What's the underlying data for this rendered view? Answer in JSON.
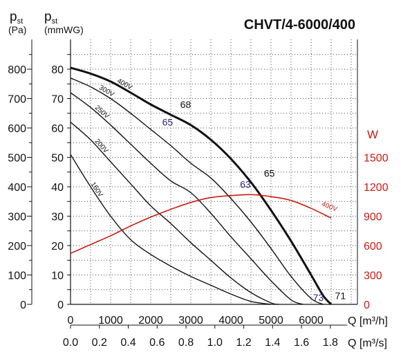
{
  "chart_data": {
    "type": "line",
    "title": "CHVT/4-6000/400",
    "left_axis_pa": {
      "label_main": "p",
      "label_sub": "st",
      "unit": "(Pa)",
      "ticks": [
        "0",
        "100",
        "200",
        "300",
        "400",
        "500",
        "600",
        "700",
        "800"
      ],
      "range": [
        0,
        900
      ]
    },
    "left_axis_mmwg": {
      "label_main": "p",
      "label_sub": "st",
      "unit": "(mmWG)",
      "ticks": [
        "0",
        "10",
        "20",
        "30",
        "40",
        "50",
        "60",
        "70",
        "80"
      ],
      "range": [
        0,
        90
      ]
    },
    "right_axis_w": {
      "label": "W",
      "ticks": [
        "0",
        "300",
        "600",
        "900",
        "1200",
        "1500"
      ],
      "range": [
        0,
        1500
      ],
      "color": "#cc1a10"
    },
    "x_axis_m3h": {
      "ticks": [
        "0",
        "1000",
        "2000",
        "3000",
        "4000",
        "5000",
        "6000"
      ],
      "unit_label": "Q [m³/h]",
      "range": [
        0,
        7000
      ]
    },
    "x_axis_m3s": {
      "ticks": [
        "0.0",
        "0.2",
        "0.4",
        "0.6",
        "0.8",
        "1.0",
        "1.2",
        "1.4",
        "1.6",
        "1.8"
      ],
      "unit_label": "Q [m³/s]"
    },
    "series": [
      {
        "name": "400V",
        "x": [
          0,
          500,
          1000,
          1500,
          2000,
          2500,
          3000,
          3500,
          4000,
          4500,
          5000,
          5500,
          6000,
          6300,
          6500
        ],
        "y": [
          80.5,
          78.5,
          75.8,
          72.0,
          68.0,
          64.5,
          61.0,
          56.0,
          49.5,
          41.5,
          32.0,
          21.5,
          10.0,
          3.0,
          0
        ]
      },
      {
        "name": "300V",
        "x": [
          0,
          500,
          1000,
          1500,
          2000,
          2500,
          3000,
          3500,
          4000,
          4500,
          5000,
          5500,
          6000,
          6300
        ],
        "y": [
          77.0,
          74.0,
          70.0,
          65.0,
          59.5,
          54.0,
          48.0,
          43.0,
          36.0,
          28.0,
          19.0,
          9.5,
          2.0,
          0
        ]
      },
      {
        "name": "250V",
        "x": [
          0,
          500,
          1000,
          1500,
          2000,
          2500,
          3000,
          3500,
          4000,
          4500,
          5000,
          5500,
          5800
        ],
        "y": [
          72.0,
          67.0,
          61.0,
          54.5,
          48.0,
          42.0,
          38.0,
          31.0,
          23.0,
          15.5,
          8.0,
          1.5,
          0
        ]
      },
      {
        "name": "200V",
        "x": [
          0,
          500,
          1000,
          1500,
          2000,
          2500,
          3000,
          3500,
          4000,
          4500,
          5000,
          5200
        ],
        "y": [
          62.0,
          56.0,
          48.5,
          41.0,
          33.5,
          27.5,
          21.0,
          15.0,
          9.0,
          4.0,
          0.5,
          0
        ]
      },
      {
        "name": "160V",
        "x": [
          0,
          500,
          1000,
          1500,
          2000,
          2500,
          3000,
          3500,
          4000,
          4500,
          5000
        ],
        "y": [
          51.0,
          40.0,
          30.0,
          22.0,
          17.0,
          13.0,
          9.5,
          6.5,
          3.5,
          1.0,
          0
        ]
      }
    ],
    "power_series": {
      "name": "400V",
      "x": [
        0,
        500,
        1000,
        1500,
        2000,
        2500,
        3000,
        3500,
        4000,
        4500,
        5000,
        5500,
        6000,
        6500
      ],
      "y_w": [
        520,
        610,
        700,
        800,
        890,
        970,
        1040,
        1090,
        1110,
        1120,
        1100,
        1060,
        980,
        880
      ]
    },
    "efficiency_labels": [
      {
        "text": "68",
        "x": 2870,
        "y": 66.8,
        "color": "#111111"
      },
      {
        "text": "65",
        "x": 2420,
        "y": 60.8,
        "color": "#2a2a7a"
      },
      {
        "text": "63",
        "x": 4360,
        "y": 39.7,
        "color": "#2a2a7a"
      },
      {
        "text": "65",
        "x": 4960,
        "y": 43.4,
        "color": "#111111"
      },
      {
        "text": "73",
        "x": 6180,
        "y": 1.2,
        "color": "#2a2a7a"
      },
      {
        "text": "71",
        "x": 6730,
        "y": 1.8,
        "color": "#111111"
      }
    ]
  }
}
